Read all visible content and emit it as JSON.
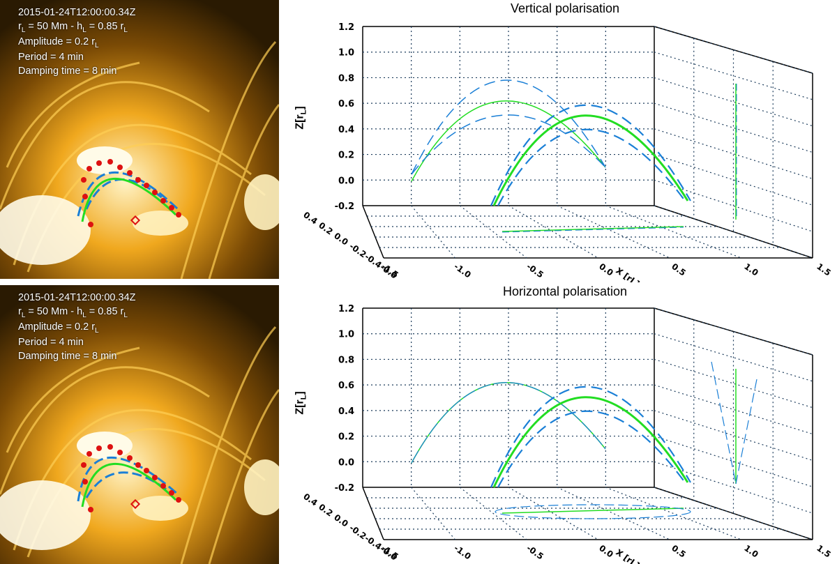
{
  "panels": [
    {
      "timestamp": "2015-01-24T12:00:00.34Z",
      "radius_line_a": "r",
      "radius_line_sub1": "L",
      "radius_line_b": " = 50 Mm - h",
      "radius_line_sub2": "L",
      "radius_line_c": " = 0.85 r",
      "radius_line_sub3": "L",
      "amplitude_a": "Amplitude = 0.2 r",
      "amplitude_sub": "L",
      "period": "Period = 4 min",
      "damping": "Damping time = 8 min"
    },
    {
      "timestamp": "2015-01-24T12:00:00.34Z",
      "radius_line_a": "r",
      "radius_line_sub1": "L",
      "radius_line_b": " = 50 Mm - h",
      "radius_line_sub2": "L",
      "radius_line_c": " = 0.85 r",
      "radius_line_sub3": "L",
      "amplitude_a": "Amplitude = 0.2 r",
      "amplitude_sub": "L",
      "period": "Period = 4 min",
      "damping": "Damping time = 8 min"
    }
  ],
  "plots": [
    {
      "title": "Vertical polarisation",
      "zlabel": "Z[r",
      "zlabel_sub": "L",
      "zlabel_end": "]",
      "xlabel": "X [r",
      "xlabel_sub": "L",
      "xlabel_end": "]"
    },
    {
      "title": "Horizontal polarisation",
      "zlabel": "Z[r",
      "zlabel_sub": "L",
      "zlabel_end": "]",
      "xlabel": "X [r",
      "xlabel_sub": "L",
      "xlabel_end": "]"
    }
  ],
  "z_ticks": [
    "1.2",
    "1.0",
    "0.8",
    "0.6",
    "0.4",
    "0.2",
    "0.0",
    "-0.2"
  ],
  "y_ticks": [
    "0.4",
    "0.2",
    "0.0",
    "-0.2",
    "-0.4",
    "-0.6"
  ],
  "x_ticks": [
    "-1.5",
    "-1.0",
    "-0.5",
    "0.0",
    "0.5",
    "1.0",
    "1.5"
  ],
  "colors": {
    "green": "#22dd22",
    "blue": "#1a7fd6",
    "red": "#dd1111",
    "grid": "#1a3a5a"
  }
}
